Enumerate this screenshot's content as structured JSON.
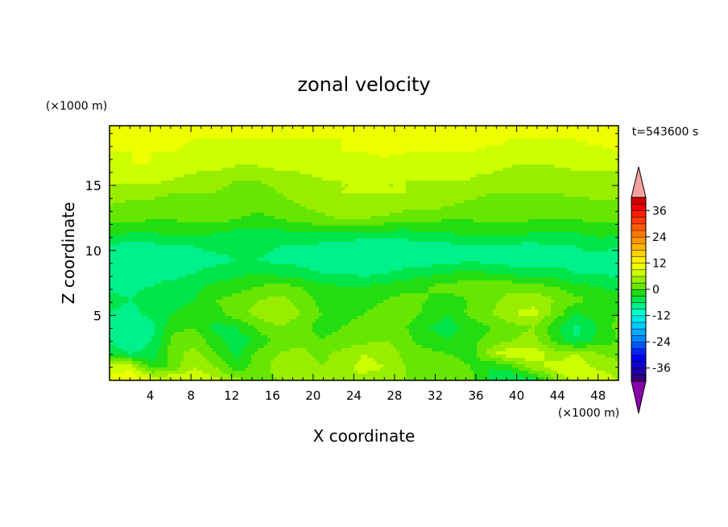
{
  "chart_data": {
    "type": "heatmap",
    "title": "zonal velocity",
    "xlabel": "X coordinate",
    "ylabel": "Z coordinate",
    "x_unit_label": "(×1000 m)",
    "y_unit_label": "(×1000 m)",
    "time_label": "t=543600 s",
    "xlim": [
      0,
      50
    ],
    "ylim": [
      0,
      19.6
    ],
    "x_ticks": [
      4,
      8,
      12,
      16,
      20,
      24,
      28,
      32,
      36,
      40,
      44,
      48
    ],
    "y_ticks": [
      5,
      10,
      15
    ],
    "colorbar": {
      "levels": [
        -42,
        -39,
        -36,
        -33,
        -30,
        -27,
        -24,
        -21,
        -18,
        -15,
        -12,
        -9,
        -6,
        -3,
        0,
        3,
        6,
        9,
        12,
        15,
        18,
        21,
        24,
        27,
        30,
        33,
        36,
        39,
        42
      ],
      "colors": [
        "#33007a",
        "#2200aa",
        "#1100cc",
        "#0000ee",
        "#0022ff",
        "#0055ff",
        "#0088ff",
        "#00aaff",
        "#00ccff",
        "#00e8e8",
        "#00ffcc",
        "#00f08a",
        "#00e64a",
        "#22dd11",
        "#66e600",
        "#99ee00",
        "#ccff00",
        "#eeff00",
        "#ffee00",
        "#ffd200",
        "#ffb400",
        "#ff9600",
        "#ff7800",
        "#ff5a00",
        "#ff3c00",
        "#ff1e00",
        "#ee0000",
        "#d40000"
      ],
      "over_color": "#f5a0a0",
      "under_color": "#8800aa",
      "tick_labels": [
        "36",
        "24",
        "12",
        "0",
        "-12",
        "-24",
        "-36"
      ]
    },
    "field": {
      "description_rows_bottom_to_top": "values in m/s, grid 25 cols x 20 rows",
      "nx": 25,
      "ny": 20,
      "values": [
        [
          10,
          11,
          10,
          9,
          8,
          7,
          4,
          2,
          3,
          4,
          5,
          6,
          5,
          4,
          3,
          3,
          2,
          1,
          -4,
          -6,
          -5,
          3,
          8,
          9,
          6
        ],
        [
          7,
          8,
          -2,
          1,
          6,
          3,
          -2,
          2,
          4,
          5,
          3,
          5,
          7,
          6,
          3,
          2,
          3,
          0,
          -3,
          -1,
          5,
          7,
          9,
          5,
          4
        ],
        [
          -4,
          -6,
          -5,
          2,
          4,
          0,
          -4,
          1,
          3,
          4,
          2,
          4,
          6,
          5,
          2,
          1,
          0,
          -2,
          5,
          9,
          8,
          4,
          6,
          3,
          2
        ],
        [
          -7,
          -8,
          -6,
          1,
          2,
          -2,
          -5,
          -2,
          1,
          2,
          0,
          1,
          2,
          3,
          1,
          -2,
          -3,
          -1,
          1,
          3,
          4,
          -1,
          -6,
          -2,
          0
        ],
        [
          -8,
          -9,
          -7,
          -1,
          0,
          -4,
          -3,
          1,
          3,
          1,
          -1,
          0,
          1,
          2,
          0,
          -3,
          -4,
          -2,
          0,
          2,
          3,
          -2,
          -7,
          -3,
          1
        ],
        [
          -6,
          -7,
          -5,
          -3,
          -2,
          -1,
          2,
          4,
          6,
          3,
          0,
          -1,
          0,
          1,
          2,
          -1,
          -3,
          1,
          3,
          6,
          7,
          2,
          -3,
          -1,
          0
        ],
        [
          -5,
          -6,
          -4,
          -4,
          -3,
          0,
          1,
          3,
          4,
          2,
          -1,
          -2,
          -1,
          0,
          1,
          0,
          -1,
          0,
          2,
          4,
          5,
          3,
          1,
          -1,
          -2
        ],
        [
          -7,
          -7,
          -6,
          -5,
          -4,
          -2,
          -1,
          0,
          1,
          0,
          -2,
          -3,
          -3,
          -2,
          -1,
          0,
          1,
          2,
          3,
          2,
          1,
          0,
          -2,
          -3,
          -4
        ],
        [
          -8,
          -8,
          -7,
          -7,
          -6,
          -5,
          -4,
          -3,
          -4,
          -5,
          -6,
          -6,
          -7,
          -6,
          -5,
          -4,
          -3,
          -2,
          -3,
          -4,
          -5,
          -5,
          -6,
          -6,
          -7
        ],
        [
          -9,
          -9,
          -8,
          -8,
          -7,
          -7,
          -6,
          -6,
          -7,
          -7,
          -8,
          -9,
          -9,
          -9,
          -8,
          -8,
          -7,
          -7,
          -7,
          -8,
          -8,
          -7,
          -7,
          -7,
          -8
        ],
        [
          -7,
          -7,
          -7,
          -6,
          -6,
          -5,
          -5,
          -5,
          -6,
          -6,
          -7,
          -8,
          -9,
          -9,
          -8,
          -7,
          -7,
          -6,
          -6,
          -7,
          -7,
          -6,
          -6,
          -5,
          -6
        ],
        [
          -2,
          -3,
          -3,
          -2,
          -2,
          -3,
          -4,
          -4,
          -4,
          -3,
          -3,
          -3,
          -3,
          -4,
          -4,
          -3,
          -3,
          -2,
          -2,
          -2,
          -3,
          -3,
          -3,
          -2,
          -2
        ],
        [
          1,
          1,
          0,
          0,
          1,
          1,
          0,
          -1,
          0,
          1,
          2,
          3,
          3,
          2,
          1,
          1,
          0,
          0,
          1,
          1,
          0,
          0,
          0,
          1,
          1
        ],
        [
          3,
          2,
          2,
          1,
          1,
          2,
          1,
          1,
          2,
          3,
          4,
          5,
          5,
          5,
          4,
          4,
          3,
          2,
          2,
          2,
          1,
          1,
          1,
          2,
          2
        ],
        [
          5,
          4,
          4,
          3,
          3,
          3,
          2,
          2,
          3,
          4,
          5,
          6,
          6,
          6,
          6,
          5,
          5,
          4,
          3,
          3,
          3,
          3,
          4,
          4,
          4
        ],
        [
          7,
          7,
          7,
          6,
          5,
          4,
          3,
          3,
          4,
          5,
          6,
          6,
          6,
          6,
          6,
          6,
          6,
          6,
          5,
          4,
          4,
          4,
          4,
          4,
          5
        ],
        [
          8,
          9,
          9,
          8,
          7,
          7,
          6,
          6,
          7,
          7,
          7,
          7,
          7,
          7,
          7,
          7,
          7,
          7,
          7,
          6,
          6,
          6,
          7,
          7,
          7
        ],
        [
          9,
          9,
          9,
          9,
          8,
          8,
          8,
          8,
          8,
          8,
          8,
          9,
          9,
          10,
          9,
          9,
          9,
          9,
          8,
          8,
          8,
          8,
          8,
          8,
          9
        ],
        [
          10,
          10,
          10,
          10,
          9,
          9,
          9,
          9,
          9,
          9,
          9,
          9,
          10,
          10,
          10,
          10,
          10,
          10,
          10,
          9,
          9,
          9,
          9,
          10,
          10
        ],
        [
          12,
          12,
          11,
          11,
          10,
          10,
          10,
          10,
          9,
          9,
          9,
          10,
          10,
          10,
          10,
          10,
          10,
          10,
          11,
          12,
          12,
          11,
          10,
          10,
          10
        ]
      ]
    }
  }
}
